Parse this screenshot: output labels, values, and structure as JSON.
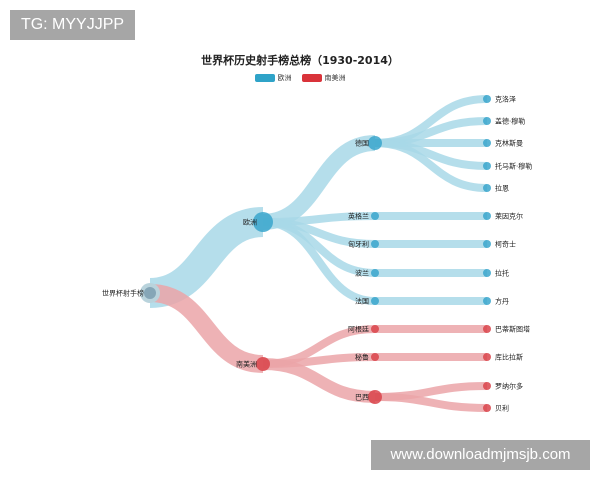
{
  "watermarks": {
    "top_left": "TG: MYYJJPP",
    "bottom_right": "www.downloadmjmsjb.com"
  },
  "title": "世界杯历史射手榜总榜（1930-2014）",
  "legend": [
    {
      "label": "欧洲",
      "color": "#2fa3c8"
    },
    {
      "label": "南美洲",
      "color": "#d9333a"
    }
  ],
  "tree": {
    "name": "世界杯射手榜",
    "children": [
      {
        "name": "欧洲",
        "group": 0,
        "children": [
          {
            "name": "德国",
            "children": [
              {
                "name": "克洛泽"
              },
              {
                "name": "盖德·穆勒"
              },
              {
                "name": "克林斯曼"
              },
              {
                "name": "托马斯·穆勒"
              },
              {
                "name": "拉恩"
              }
            ]
          },
          {
            "name": "英格兰",
            "children": [
              {
                "name": "莱因克尔"
              }
            ]
          },
          {
            "name": "匈牙利",
            "children": [
              {
                "name": "柯奇士"
              }
            ]
          },
          {
            "name": "波兰",
            "children": [
              {
                "name": "拉托"
              }
            ]
          },
          {
            "name": "法国",
            "children": [
              {
                "name": "方丹"
              }
            ]
          }
        ]
      },
      {
        "name": "南美洲",
        "group": 1,
        "children": [
          {
            "name": "阿根廷",
            "children": [
              {
                "name": "巴蒂斯图塔"
              }
            ]
          },
          {
            "name": "秘鲁",
            "children": [
              {
                "name": "库比拉斯"
              }
            ]
          },
          {
            "name": "巴西",
            "children": [
              {
                "name": "罗纳尔多"
              },
              {
                "name": "贝利"
              }
            ]
          }
        ]
      }
    ]
  }
}
